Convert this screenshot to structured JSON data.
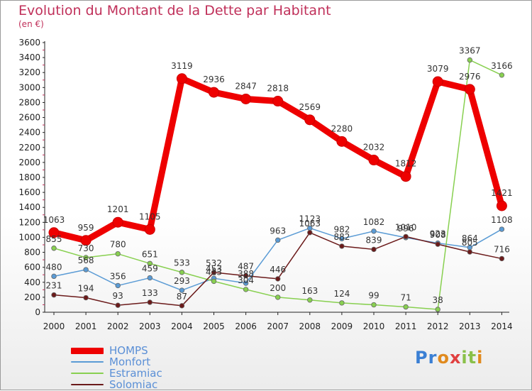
{
  "title": "Evolution du Montant de la Dette par Habitant",
  "subtitle": "(en €)",
  "logo": {
    "letters": [
      "P",
      "r",
      "o",
      "x",
      "i",
      "t",
      "i"
    ],
    "colors": [
      "#3a7fd4",
      "#3a7fd4",
      "#e08a1e",
      "#e04040",
      "#8ac04a",
      "#8ac04a",
      "#e08a1e"
    ]
  },
  "chart_data": {
    "type": "line",
    "title": "Evolution du Montant de la Dette par Habitant",
    "ylabel": "(en €)",
    "x": [
      "2000",
      "2001",
      "2002",
      "2003",
      "2004",
      "2005",
      "2006",
      "2007",
      "2008",
      "2009",
      "2010",
      "2011",
      "2012",
      "2013",
      "2014"
    ],
    "ylim": [
      0,
      3600
    ],
    "yticks": [
      0,
      200,
      400,
      600,
      800,
      1000,
      1200,
      1400,
      1600,
      1800,
      2000,
      2200,
      2400,
      2600,
      2800,
      3000,
      3200,
      3400,
      3600
    ],
    "grid": false,
    "legend_position": "bottom-left",
    "series": [
      {
        "name": "HOMPS",
        "color": "#ee0000",
        "thick": true,
        "values": [
          1063,
          959,
          1201,
          1105,
          3119,
          2936,
          2847,
          2818,
          2569,
          2280,
          2032,
          1812,
          3079,
          2976,
          1421
        ]
      },
      {
        "name": "Monfort",
        "color": "#5a9bd5",
        "thick": false,
        "values": [
          480,
          568,
          356,
          459,
          293,
          453,
          388,
          963,
          1123,
          982,
          1082,
          996,
          923,
          864,
          1108
        ]
      },
      {
        "name": "Estramiac",
        "color": "#88d050",
        "thick": false,
        "values": [
          855,
          730,
          780,
          651,
          533,
          413,
          304,
          200,
          163,
          124,
          99,
          71,
          38,
          3367,
          3166
        ]
      },
      {
        "name": "Solomiac",
        "color": "#6b1a1a",
        "thick": false,
        "values": [
          231,
          194,
          93,
          133,
          87,
          532,
          487,
          446,
          1063,
          882,
          839,
          1010,
          908,
          805,
          716
        ]
      }
    ]
  }
}
